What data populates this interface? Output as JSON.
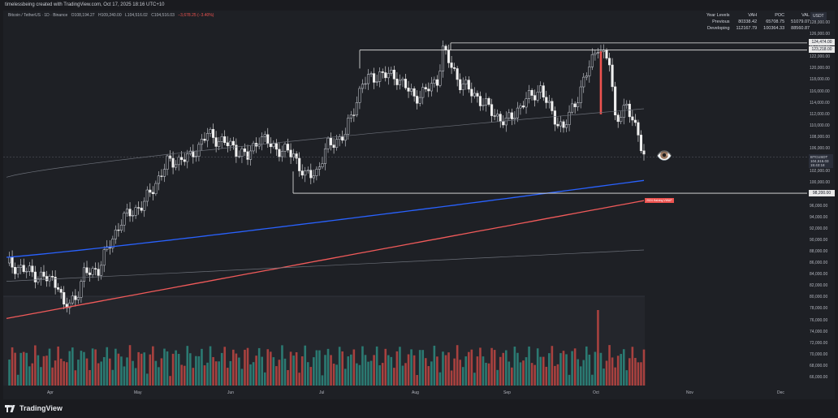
{
  "watermark_text": "timelessbeing created with TradingView.com, Oct 17, 2025 18:16 UTC+10",
  "symbol": {
    "name": "Bitcoin / TetherUS · 1D · Binance",
    "ohlc": [
      "O108,194.27",
      "H109,240.00",
      "L104,516.02",
      "C104,516.03",
      "−3,678.25 (−3.40%)"
    ]
  },
  "currency_label": "USDT",
  "profile": {
    "headers": [
      "Year Levels",
      "VAH",
      "POC",
      "VAL"
    ],
    "rows": [
      [
        "Previous",
        "80338.42",
        "65708.75",
        "51079.07"
      ],
      [
        "Developing",
        "112167.79",
        "100364.33",
        "88560.87"
      ]
    ]
  },
  "price_axis": {
    "ticks": [
      "128,000.00",
      "126,000.00",
      "124,000.00",
      "122,000.00",
      "120,000.00",
      "118,000.00",
      "116,000.00",
      "114,000.00",
      "112,000.00",
      "110,000.00",
      "108,000.00",
      "106,000.00",
      "104,000.00",
      "102,000.00",
      "100,000.00",
      "98,000.00",
      "96,000.00",
      "94,000.00",
      "92,000.00",
      "90,000.00",
      "88,000.00",
      "86,000.00",
      "84,000.00",
      "82,000.00",
      "80,000.00",
      "78,000.00",
      "76,000.00",
      "74,000.00",
      "72,000.00",
      "70,000.00",
      "68,000.00",
      "66,000.00"
    ],
    "levels": [
      {
        "label": "124,474.00",
        "value": 124474
      },
      {
        "label": "123,218.00",
        "value": 123218
      },
      {
        "label": "98,200.00",
        "value": 98200
      }
    ],
    "symbol_badge": "BTCUSDT",
    "last_price": "104,516.03",
    "countdown": "15:43:18"
  },
  "time_axis": [
    "Apr",
    "May",
    "Jun",
    "Jul",
    "Aug",
    "Sep",
    "Oct",
    "Nov",
    "Dec"
  ],
  "annotations": {
    "eye_icon": "👁️",
    "avwap_tag": "2024 Halving VWAP"
  },
  "colors": {
    "up": "#26a69a",
    "down": "#ef5350",
    "blue_ma": "#2962ff",
    "red_vwap": "#f05a5a",
    "background": "#1e2025"
  },
  "footer": {
    "brand": "TradingView"
  },
  "chart_data": {
    "type": "candlestick",
    "symbol": "BTCUSDT",
    "interval": "1D",
    "ylim": [
      65000,
      129000
    ],
    "x": [
      "Apr",
      "May",
      "Jun",
      "Jul",
      "Aug",
      "Sep",
      "Oct"
    ],
    "close": [
      84000,
      96000,
      106000,
      118000,
      115000,
      112000,
      104516
    ],
    "levels": [
      124474,
      123218,
      98200
    ]
  }
}
